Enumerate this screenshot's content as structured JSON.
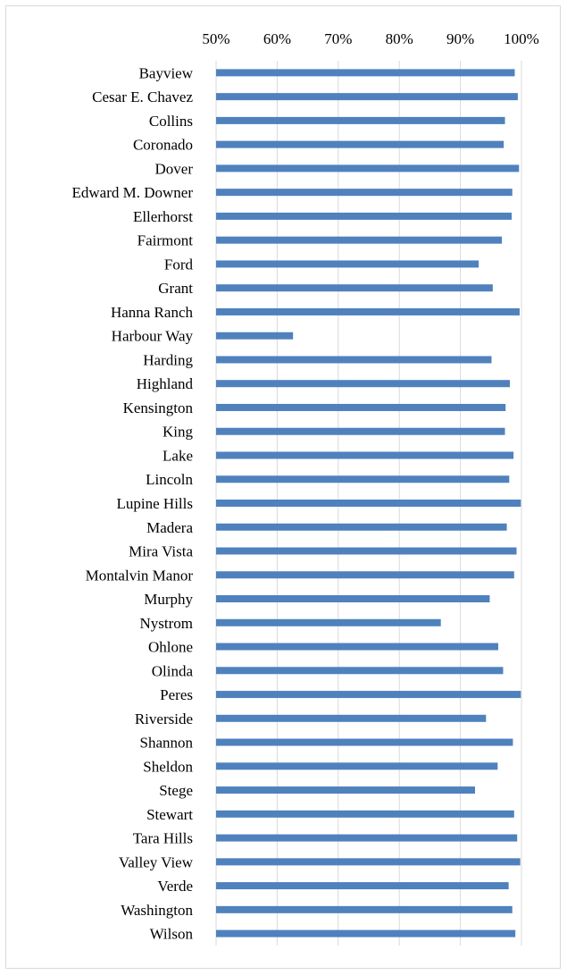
{
  "chart_data": {
    "type": "bar",
    "orientation": "horizontal",
    "title": "",
    "xlabel": "",
    "ylabel": "",
    "x_ticks": [
      "50%",
      "60%",
      "70%",
      "80%",
      "90%",
      "100%"
    ],
    "xlim": [
      0.5,
      1.0
    ],
    "grid": "vertical",
    "bar_color": "#4f81bd",
    "gridline_color": "#d9d9d9",
    "categories": [
      "Bayview",
      "Cesar E. Chavez",
      "Collins",
      "Coronado",
      "Dover",
      "Edward M. Downer",
      "Ellerhorst",
      "Fairmont",
      "Ford",
      "Grant",
      "Hanna Ranch",
      "Harbour Way",
      "Harding",
      "Highland",
      "Kensington",
      "King",
      "Lake",
      "Lincoln",
      "Lupine Hills",
      "Madera",
      "Mira Vista",
      "Montalvin Manor",
      "Murphy",
      "Nystrom",
      "Ohlone",
      "Olinda",
      "Peres",
      "Riverside",
      "Shannon",
      "Sheldon",
      "Stege",
      "Stewart",
      "Tara Hills",
      "Valley View",
      "Verde",
      "Washington",
      "Wilson"
    ],
    "values": [
      0.989,
      0.994,
      0.973,
      0.971,
      0.996,
      0.985,
      0.984,
      0.968,
      0.93,
      0.953,
      0.997,
      0.626,
      0.951,
      0.981,
      0.974,
      0.973,
      0.987,
      0.98,
      0.999,
      0.976,
      0.992,
      0.988,
      0.948,
      0.868,
      0.962,
      0.97,
      0.999,
      0.942,
      0.986,
      0.961,
      0.924,
      0.988,
      0.993,
      0.998,
      0.979,
      0.985,
      0.99
    ]
  }
}
